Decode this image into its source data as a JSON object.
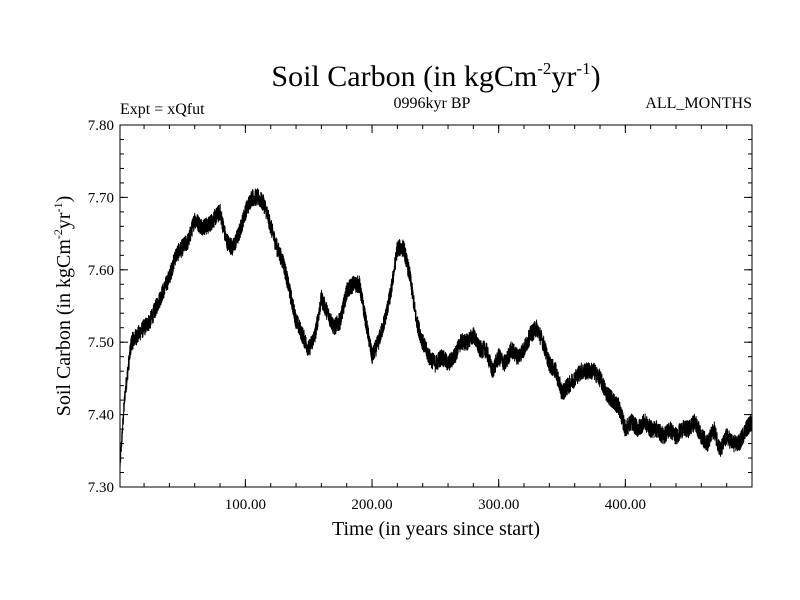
{
  "chart_data": {
    "type": "line",
    "title_main": "Soil Carbon (in kgCm",
    "title_sup1": "-2",
    "title_mid": "yr",
    "title_sup2": "-1",
    "title_end": ")",
    "subtitle_left": "Expt = xQfut",
    "subtitle_center": "0996kyr BP",
    "subtitle_right": "ALL_MONTHS",
    "xlabel": "Time (in years since start)",
    "ylabel_main": "Soil Carbon (in kgCm",
    "ylabel_sup1": "-2",
    "ylabel_mid": "yr",
    "ylabel_sup2": "-1",
    "ylabel_end": ")",
    "xlim": [
      1,
      500
    ],
    "ylim": [
      7.3,
      7.8
    ],
    "xticks": [
      100,
      200,
      300,
      400
    ],
    "xtick_labels": [
      "100.00",
      "200.00",
      "300.00",
      "400.00"
    ],
    "yticks": [
      7.3,
      7.4,
      7.5,
      7.6,
      7.7,
      7.8
    ],
    "ytick_labels": [
      "7.30",
      "7.40",
      "7.50",
      "7.60",
      "7.70",
      "7.80"
    ],
    "noise_amplitude": 0.012,
    "series": [
      {
        "name": "Soil Carbon",
        "x": [
          1,
          5,
          10,
          15,
          20,
          25,
          30,
          35,
          40,
          45,
          50,
          55,
          60,
          65,
          70,
          75,
          80,
          85,
          90,
          95,
          100,
          105,
          110,
          115,
          120,
          125,
          130,
          135,
          140,
          145,
          150,
          155,
          160,
          165,
          170,
          175,
          180,
          185,
          190,
          195,
          200,
          205,
          210,
          215,
          220,
          225,
          230,
          235,
          240,
          245,
          250,
          255,
          260,
          265,
          270,
          275,
          280,
          285,
          290,
          295,
          300,
          305,
          310,
          315,
          320,
          325,
          330,
          335,
          340,
          345,
          350,
          355,
          360,
          365,
          370,
          375,
          380,
          385,
          390,
          395,
          400,
          405,
          410,
          415,
          420,
          425,
          430,
          435,
          440,
          445,
          450,
          455,
          460,
          465,
          470,
          475,
          480,
          485,
          490,
          495,
          500
        ],
        "values": [
          7.33,
          7.43,
          7.5,
          7.51,
          7.52,
          7.53,
          7.55,
          7.57,
          7.59,
          7.62,
          7.63,
          7.64,
          7.67,
          7.66,
          7.66,
          7.67,
          7.68,
          7.64,
          7.63,
          7.65,
          7.68,
          7.7,
          7.7,
          7.69,
          7.66,
          7.63,
          7.61,
          7.57,
          7.53,
          7.51,
          7.49,
          7.51,
          7.56,
          7.54,
          7.52,
          7.53,
          7.57,
          7.58,
          7.58,
          7.53,
          7.48,
          7.5,
          7.53,
          7.57,
          7.63,
          7.63,
          7.59,
          7.53,
          7.5,
          7.48,
          7.47,
          7.48,
          7.47,
          7.48,
          7.5,
          7.5,
          7.51,
          7.49,
          7.49,
          7.46,
          7.48,
          7.47,
          7.49,
          7.48,
          7.49,
          7.51,
          7.52,
          7.5,
          7.47,
          7.46,
          7.43,
          7.44,
          7.45,
          7.46,
          7.46,
          7.46,
          7.45,
          7.43,
          7.42,
          7.41,
          7.38,
          7.39,
          7.38,
          7.39,
          7.38,
          7.38,
          7.37,
          7.38,
          7.37,
          7.38,
          7.38,
          7.39,
          7.37,
          7.36,
          7.38,
          7.35,
          7.37,
          7.36,
          7.36,
          7.38,
          7.39
        ]
      }
    ]
  }
}
